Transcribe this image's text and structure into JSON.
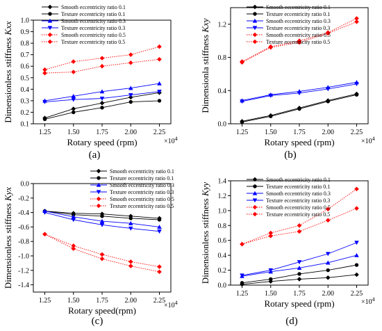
{
  "chart_data": [
    {
      "type": "line",
      "panel_label": "(a)",
      "xlabel": "Rotary speed (rpm)",
      "x_multiplier": "×10",
      "x_multiplier_exp": "4",
      "ylabel_prefix": "Dimensionless stiffness ",
      "ylabel_symbol": "Kxx",
      "x": [
        1.25,
        1.5,
        1.75,
        2.0,
        2.25
      ],
      "x_ticks": [
        "1.25",
        "1.50",
        "1.75",
        "2.00",
        "2.25"
      ],
      "ylim": [
        0.1,
        1.0
      ],
      "y_ticks": [
        "0.1",
        "0.2",
        "0.3",
        "0.4",
        "0.5",
        "0.6",
        "0.7",
        "0.8",
        "0.9",
        "1.0"
      ],
      "legend_position": "top-left",
      "series": [
        {
          "name": "Smooth eccentricity ratio 0.1",
          "values": [
            0.15,
            0.23,
            0.28,
            0.33,
            0.37
          ]
        },
        {
          "name": "Texture eccentricity ratio 0.1",
          "values": [
            0.14,
            0.2,
            0.24,
            0.29,
            0.3
          ]
        },
        {
          "name": "Smooth eccentricity ratio 0.3",
          "values": [
            0.3,
            0.34,
            0.38,
            0.41,
            0.45
          ]
        },
        {
          "name": "Texture eccentricity ratio 0.3",
          "values": [
            0.29,
            0.31,
            0.32,
            0.35,
            0.38
          ]
        },
        {
          "name": "Smooth eccentricity ratio 0.5",
          "values": [
            0.57,
            0.64,
            0.67,
            0.7,
            0.77
          ]
        },
        {
          "name": "Texture eccentricity ratio 0.5",
          "values": [
            0.54,
            0.55,
            0.6,
            0.63,
            0.66
          ]
        }
      ]
    },
    {
      "type": "line",
      "panel_label": "(b)",
      "xlabel": "Rotary speed (rpm)",
      "x_multiplier": "×10",
      "x_multiplier_exp": "4",
      "ylabel_prefix": "Dimensionla stiffness ",
      "ylabel_symbol": "Kxy",
      "x": [
        1.25,
        1.5,
        1.75,
        2.0,
        2.25
      ],
      "x_ticks": [
        "1.25",
        "1.50",
        "1.75",
        "2.00",
        "2.25"
      ],
      "ylim": [
        0.0,
        1.4
      ],
      "y_ticks": [
        "0.0",
        "0.4",
        "0.8",
        "1.2"
      ],
      "legend_position": "top-left",
      "series": [
        {
          "name": "Smooth eccentricity ratio 0.1",
          "values": [
            0.03,
            0.1,
            0.19,
            0.28,
            0.36
          ]
        },
        {
          "name": "Texture eccentricity ratio 0.1",
          "values": [
            0.02,
            0.09,
            0.18,
            0.27,
            0.35
          ]
        },
        {
          "name": "Smooth eccentricity ratio 0.3",
          "values": [
            0.28,
            0.35,
            0.39,
            0.44,
            0.5
          ]
        },
        {
          "name": "Texture eccentricity ratio 0.3",
          "values": [
            0.27,
            0.34,
            0.37,
            0.42,
            0.48
          ]
        },
        {
          "name": "Smooth eccentricity ratio 0.5",
          "values": [
            0.75,
            0.93,
            1.0,
            1.1,
            1.27
          ]
        },
        {
          "name": "Texture eccentricity ratio 0.5",
          "values": [
            0.74,
            0.92,
            0.98,
            1.09,
            1.23
          ]
        }
      ]
    },
    {
      "type": "line",
      "panel_label": "(c)",
      "xlabel": "Rotary speed(rpm)",
      "x_multiplier": "×10",
      "x_multiplier_exp": "4",
      "ylabel_prefix": "Dimensionless stiffness ",
      "ylabel_symbol": "Kyx",
      "x": [
        1.25,
        1.5,
        1.75,
        2.0,
        2.25
      ],
      "x_ticks": [
        "1.25",
        "1.50",
        "1.75",
        "2.00",
        "2.25"
      ],
      "ylim": [
        -1.5,
        0.0
      ],
      "y_ticks": [
        "-1.4",
        "-1.2",
        "-1.0",
        "-0.8",
        "-0.6",
        "-0.4",
        "-0.2",
        "0.0"
      ],
      "legend_position": "top-right",
      "series": [
        {
          "name": "Smooth eccentricity ratio 0.1",
          "values": [
            -0.38,
            -0.41,
            -0.42,
            -0.45,
            -0.48
          ]
        },
        {
          "name": "Texture eccentricity ratio 0.1",
          "values": [
            -0.38,
            -0.43,
            -0.45,
            -0.48,
            -0.5
          ]
        },
        {
          "name": "Smooth eccentricity ratio 0.3",
          "values": [
            -0.38,
            -0.46,
            -0.52,
            -0.55,
            -0.6
          ]
        },
        {
          "name": "Texture eccentricity ratio 0.3",
          "values": [
            -0.4,
            -0.5,
            -0.57,
            -0.62,
            -0.66
          ]
        },
        {
          "name": "Smooth eccentricity ratio 0.5",
          "values": [
            -0.7,
            -0.86,
            -0.98,
            -1.08,
            -1.15
          ]
        },
        {
          "name": "Texture eccentricity ratio 0.5",
          "values": [
            -0.7,
            -0.9,
            -1.04,
            -1.14,
            -1.22
          ]
        }
      ]
    },
    {
      "type": "line",
      "panel_label": "(d)",
      "xlabel": "Rotary speed (rpm)",
      "x_multiplier": "×10",
      "x_multiplier_exp": "4",
      "ylabel_prefix": "Dimensionless stiffness ",
      "ylabel_symbol": "Kyy",
      "x": [
        1.25,
        1.5,
        1.75,
        2.0,
        2.25
      ],
      "x_ticks": [
        "1.25",
        "1.50",
        "1.75",
        "2.00",
        "2.25"
      ],
      "ylim": [
        0.0,
        1.4
      ],
      "y_ticks": [
        "0.0",
        "0.2",
        "0.4",
        "0.6",
        "0.8",
        "1.0",
        "1.2",
        "1.4"
      ],
      "legend_position": "top-left",
      "series": [
        {
          "name": "Smooth eccentricity ratio 0.1",
          "values": [
            0.01,
            0.05,
            0.08,
            0.1,
            0.14
          ]
        },
        {
          "name": "Texture eccentricity ratio 0.1",
          "values": [
            0.03,
            0.08,
            0.15,
            0.2,
            0.27
          ]
        },
        {
          "name": "Smooth eccentricity ratio 0.3",
          "values": [
            0.12,
            0.18,
            0.23,
            0.3,
            0.4
          ]
        },
        {
          "name": "Texture eccentricity ratio 0.3",
          "values": [
            0.13,
            0.2,
            0.31,
            0.42,
            0.57
          ]
        },
        {
          "name": "Smooth eccentricity ratio 0.5",
          "values": [
            0.55,
            0.7,
            0.8,
            1.02,
            1.29
          ]
        },
        {
          "name": "Texture eccentricity ratio 0.5",
          "values": [
            0.55,
            0.66,
            0.72,
            0.87,
            1.03
          ]
        }
      ]
    }
  ],
  "series_styles": [
    {
      "color": "#000000",
      "marker": "diamond",
      "dash": "solid"
    },
    {
      "color": "#000000",
      "marker": "circle",
      "dash": "solid"
    },
    {
      "color": "#0000ff",
      "marker": "triangle-up",
      "dash": "solid"
    },
    {
      "color": "#0000ff",
      "marker": "triangle-down",
      "dash": "solid"
    },
    {
      "color": "#ff0000",
      "marker": "diamond",
      "dash": "dotted"
    },
    {
      "color": "#ff0000",
      "marker": "diamond",
      "dash": "dotted"
    }
  ]
}
